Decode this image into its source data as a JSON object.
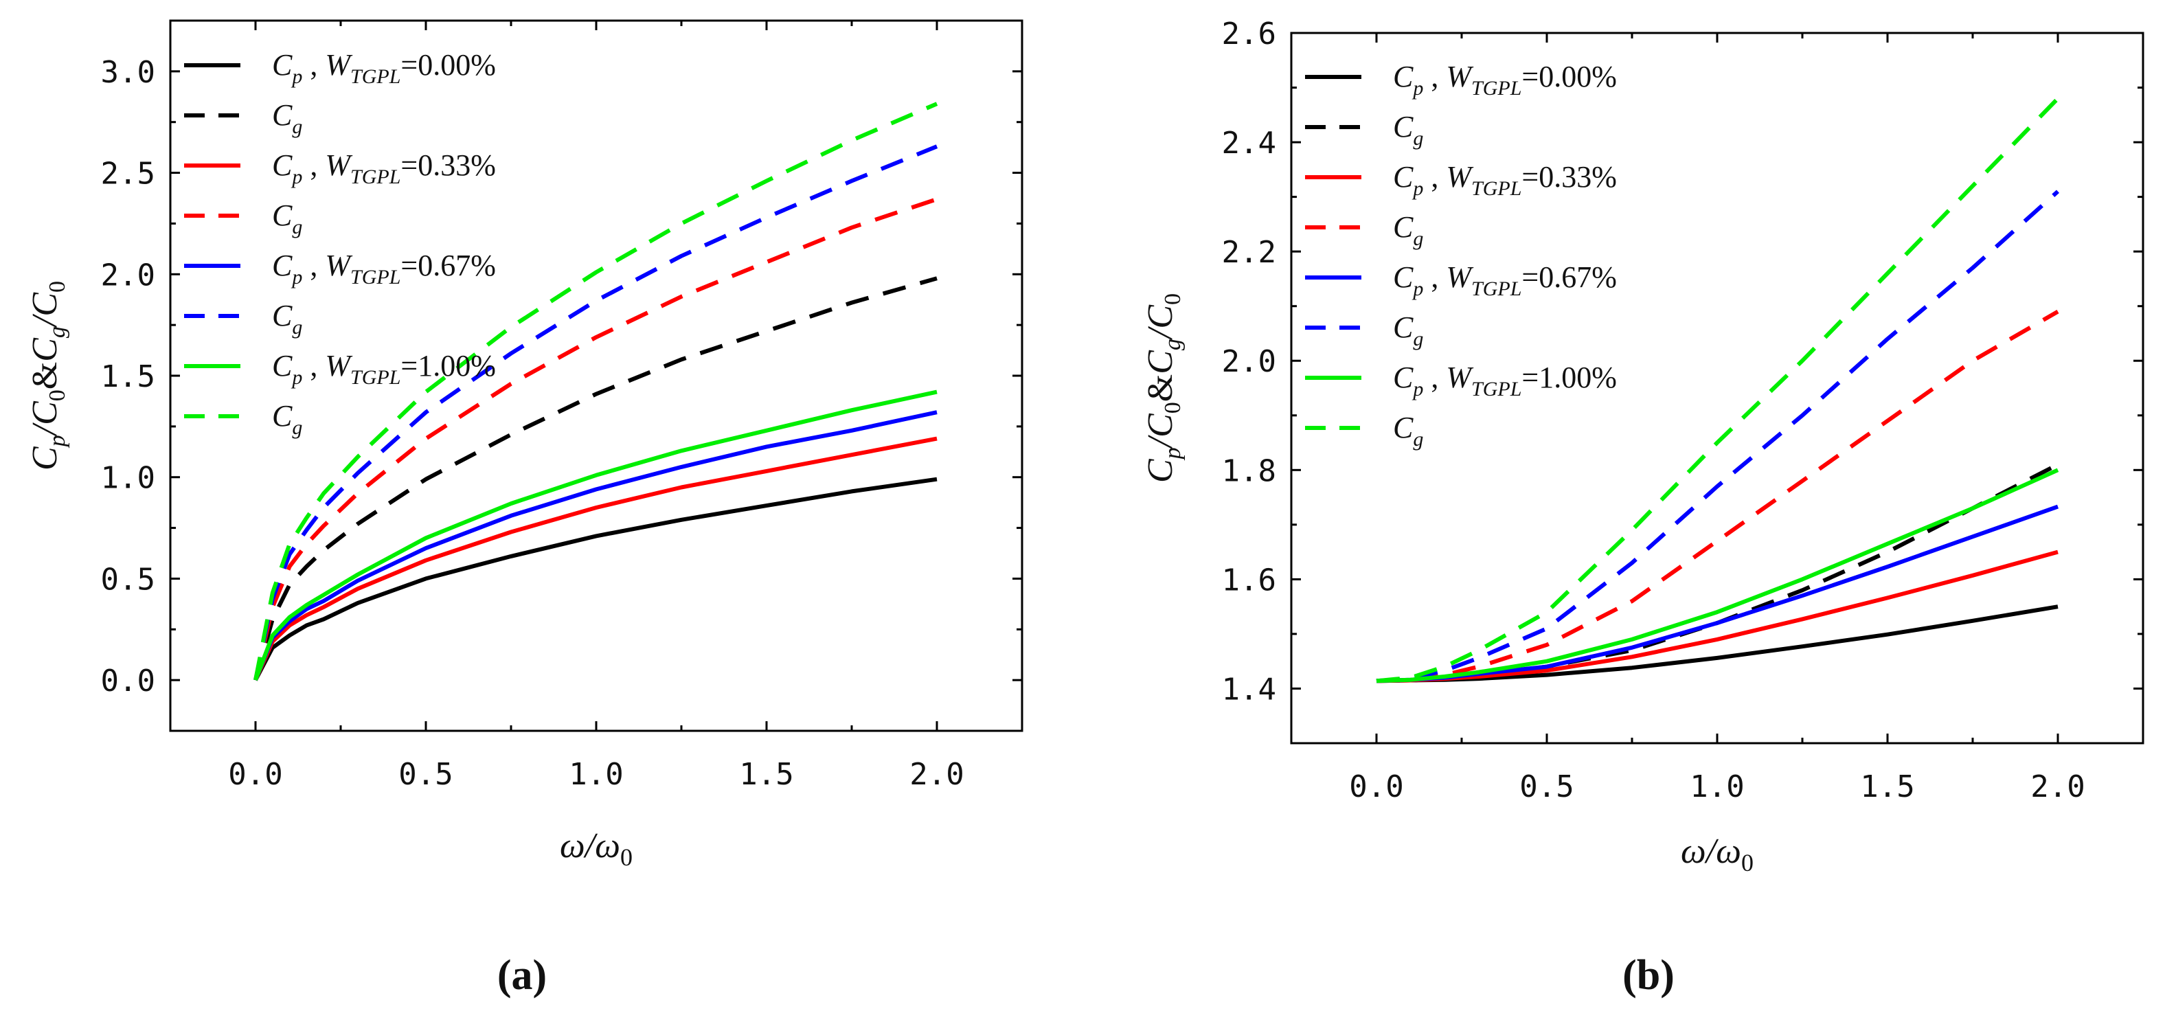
{
  "chart_data": [
    {
      "type": "line",
      "panel": "(a)",
      "xlabel": "ω/ω0",
      "ylabel": "Cp/C0&Cg/C0",
      "xlim": [
        -0.25,
        2.25
      ],
      "ylim": [
        -0.25,
        3.25
      ],
      "xticks": [
        0.0,
        0.5,
        1.0,
        1.5,
        2.0
      ],
      "xtick_labels": [
        "0.0",
        "0.5",
        "1.0",
        "1.5",
        "2.0"
      ],
      "yticks": [
        0.0,
        0.5,
        1.0,
        1.5,
        2.0,
        2.5,
        3.0
      ],
      "ytick_labels": [
        "0.0",
        "0.5",
        "1.0",
        "1.5",
        "2.0",
        "2.5",
        "3.0"
      ],
      "legend_position": "top-left",
      "x": [
        0,
        0.05,
        0.1,
        0.15,
        0.2,
        0.3,
        0.5,
        0.75,
        1.0,
        1.25,
        1.5,
        1.75,
        2.0
      ],
      "series": [
        {
          "name": "Cp , WTGPL=0.00%",
          "sym": "Cp",
          "wlabel": "=0.00%",
          "color": "#000000",
          "dash": false,
          "values": [
            0,
            0.16,
            0.22,
            0.27,
            0.3,
            0.38,
            0.5,
            0.61,
            0.71,
            0.79,
            0.86,
            0.93,
            0.99
          ]
        },
        {
          "name": "Cg",
          "sym": "Cg",
          "wlabel": "",
          "color": "#000000",
          "dash": true,
          "values": [
            0,
            0.3,
            0.47,
            0.56,
            0.64,
            0.77,
            0.99,
            1.21,
            1.41,
            1.58,
            1.72,
            1.86,
            1.98
          ]
        },
        {
          "name": "Cp , WTGPL=0.33%",
          "sym": "Cp",
          "wlabel": "=0.33%",
          "color": "#ff0000",
          "dash": false,
          "values": [
            0,
            0.19,
            0.27,
            0.32,
            0.36,
            0.45,
            0.59,
            0.73,
            0.85,
            0.95,
            1.03,
            1.11,
            1.19
          ]
        },
        {
          "name": "Cg",
          "sym": "Cg",
          "wlabel": "",
          "color": "#ff0000",
          "dash": true,
          "values": [
            0,
            0.36,
            0.56,
            0.67,
            0.76,
            0.92,
            1.19,
            1.46,
            1.69,
            1.89,
            2.06,
            2.23,
            2.37
          ]
        },
        {
          "name": "Cp , WTGPL=0.67%",
          "sym": "Cp",
          "wlabel": "=0.67%",
          "color": "#0000ff",
          "dash": false,
          "values": [
            0,
            0.21,
            0.29,
            0.35,
            0.39,
            0.49,
            0.65,
            0.81,
            0.94,
            1.05,
            1.15,
            1.23,
            1.32
          ]
        },
        {
          "name": "Cg",
          "sym": "Cg",
          "wlabel": "",
          "color": "#0000ff",
          "dash": true,
          "values": [
            0,
            0.4,
            0.62,
            0.74,
            0.85,
            1.02,
            1.32,
            1.61,
            1.87,
            2.09,
            2.28,
            2.46,
            2.63
          ]
        },
        {
          "name": "Cp , WTGPL=1.00%",
          "sym": "Cp",
          "wlabel": "=1.00%",
          "color": "#00ee00",
          "dash": false,
          "values": [
            0,
            0.22,
            0.31,
            0.37,
            0.42,
            0.52,
            0.7,
            0.87,
            1.01,
            1.13,
            1.23,
            1.33,
            1.42
          ]
        },
        {
          "name": "Cg",
          "sym": "Cg",
          "wlabel": "",
          "color": "#00ee00",
          "dash": true,
          "values": [
            0,
            0.43,
            0.67,
            0.8,
            0.92,
            1.1,
            1.42,
            1.74,
            2.01,
            2.25,
            2.46,
            2.66,
            2.84
          ]
        }
      ]
    },
    {
      "type": "line",
      "panel": "(b)",
      "xlabel": "ω/ω0",
      "ylabel": "Cp/C0&Cg/C0",
      "xlim": [
        -0.25,
        2.25
      ],
      "ylim": [
        1.3,
        2.6
      ],
      "xticks": [
        0.0,
        0.5,
        1.0,
        1.5,
        2.0
      ],
      "xtick_labels": [
        "0.0",
        "0.5",
        "1.0",
        "1.5",
        "2.0"
      ],
      "yticks": [
        1.4,
        1.6,
        1.8,
        2.0,
        2.2,
        2.4,
        2.6
      ],
      "ytick_labels": [
        "1.4",
        "1.6",
        "1.8",
        "2.0",
        "2.2",
        "2.4",
        "2.6"
      ],
      "legend_position": "top-left",
      "x": [
        0,
        0.1,
        0.2,
        0.3,
        0.5,
        0.75,
        1.0,
        1.25,
        1.5,
        1.75,
        2.0
      ],
      "series": [
        {
          "name": "Cp , WTGPL=0.00%",
          "sym": "Cp",
          "wlabel": "=0.00%",
          "color": "#000000",
          "dash": false,
          "values": [
            1.414,
            1.415,
            1.416,
            1.418,
            1.425,
            1.438,
            1.456,
            1.477,
            1.499,
            1.524,
            1.55
          ]
        },
        {
          "name": "Cg",
          "sym": "Cg",
          "wlabel": "",
          "color": "#000000",
          "dash": true,
          "values": [
            1.414,
            1.415,
            1.418,
            1.425,
            1.44,
            1.47,
            1.52,
            1.58,
            1.65,
            1.73,
            1.81
          ]
        },
        {
          "name": "Cp , WTGPL=0.33%",
          "sym": "Cp",
          "wlabel": "=0.33%",
          "color": "#ff0000",
          "dash": false,
          "values": [
            1.414,
            1.415,
            1.418,
            1.422,
            1.433,
            1.458,
            1.49,
            1.527,
            1.566,
            1.607,
            1.65
          ]
        },
        {
          "name": "Cg",
          "sym": "Cg",
          "wlabel": "",
          "color": "#ff0000",
          "dash": true,
          "values": [
            1.414,
            1.416,
            1.425,
            1.44,
            1.48,
            1.56,
            1.67,
            1.78,
            1.89,
            2.0,
            2.09
          ]
        },
        {
          "name": "Cp , WTGPL=0.67%",
          "sym": "Cp",
          "wlabel": "=0.67%",
          "color": "#0000ff",
          "dash": false,
          "values": [
            1.414,
            1.416,
            1.42,
            1.427,
            1.44,
            1.475,
            1.52,
            1.57,
            1.623,
            1.678,
            1.733
          ]
        },
        {
          "name": "Cg",
          "sym": "Cg",
          "wlabel": "",
          "color": "#0000ff",
          "dash": true,
          "values": [
            1.414,
            1.418,
            1.433,
            1.456,
            1.51,
            1.63,
            1.77,
            1.9,
            2.04,
            2.17,
            2.31
          ]
        },
        {
          "name": "Cp , WTGPL=1.00%",
          "sym": "Cp",
          "wlabel": "=1.00%",
          "color": "#00ee00",
          "dash": false,
          "values": [
            1.414,
            1.416,
            1.422,
            1.43,
            1.45,
            1.49,
            1.54,
            1.6,
            1.665,
            1.73,
            1.8
          ]
        },
        {
          "name": "Cg",
          "sym": "Cg",
          "wlabel": "",
          "color": "#00ee00",
          "dash": true,
          "values": [
            1.414,
            1.42,
            1.44,
            1.47,
            1.54,
            1.69,
            1.85,
            2.0,
            2.16,
            2.32,
            2.48
          ]
        }
      ]
    }
  ]
}
